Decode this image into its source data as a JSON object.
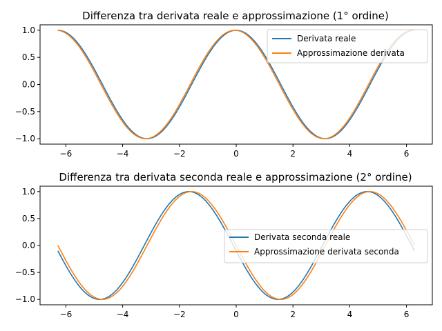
{
  "chart_data": [
    {
      "type": "line",
      "title": "Differenza tra derivata reale e approssimazione (1° ordine)",
      "xlabel": "",
      "ylabel": "",
      "xlim": [
        -6.91,
        6.91
      ],
      "ylim": [
        -1.1,
        1.1
      ],
      "xticks": [
        -6,
        -4,
        -2,
        0,
        2,
        4,
        6
      ],
      "xtick_labels": [
        "−6",
        "−4",
        "−2",
        "0",
        "2",
        "4",
        "6"
      ],
      "yticks": [
        -1.0,
        -0.5,
        0.0,
        0.5,
        1.0
      ],
      "ytick_labels": [
        "−1.0",
        "−0.5",
        "0.0",
        "0.5",
        "1.0"
      ],
      "grid": false,
      "legend_position": "upper right",
      "x_range": [
        -6.2832,
        6.2832
      ],
      "series": [
        {
          "name": "Derivata reale",
          "color": "#1f77b4",
          "function": "cos(x)",
          "x_shift": 0.0
        },
        {
          "name": "Approssimazione derivata",
          "color": "#ff7f0e",
          "function": "cos(x)",
          "x_shift": 0.05
        }
      ]
    },
    {
      "type": "line",
      "title": "Differenza tra derivata seconda reale e approssimazione (2° ordine)",
      "xlabel": "",
      "ylabel": "",
      "xlim": [
        -6.91,
        6.91
      ],
      "ylim": [
        -1.1,
        1.1
      ],
      "xticks": [
        -6,
        -4,
        -2,
        0,
        2,
        4,
        6
      ],
      "xtick_labels": [
        "−6",
        "−4",
        "−2",
        "0",
        "2",
        "4",
        "6"
      ],
      "yticks": [
        -1.0,
        -0.5,
        0.0,
        0.5,
        1.0
      ],
      "ytick_labels": [
        "−1.0",
        "−0.5",
        "0.0",
        "0.5",
        "1.0"
      ],
      "grid": false,
      "legend_position": "center right",
      "x_range": [
        -6.2832,
        6.2832
      ],
      "series": [
        {
          "name": "Derivata seconda reale",
          "color": "#1f77b4",
          "function": "-sin(x)",
          "x_shift": 0.1
        },
        {
          "name": "Approssimazione derivata seconda",
          "color": "#ff7f0e",
          "function": "-sin(x)",
          "x_shift": 0.0
        }
      ]
    }
  ]
}
